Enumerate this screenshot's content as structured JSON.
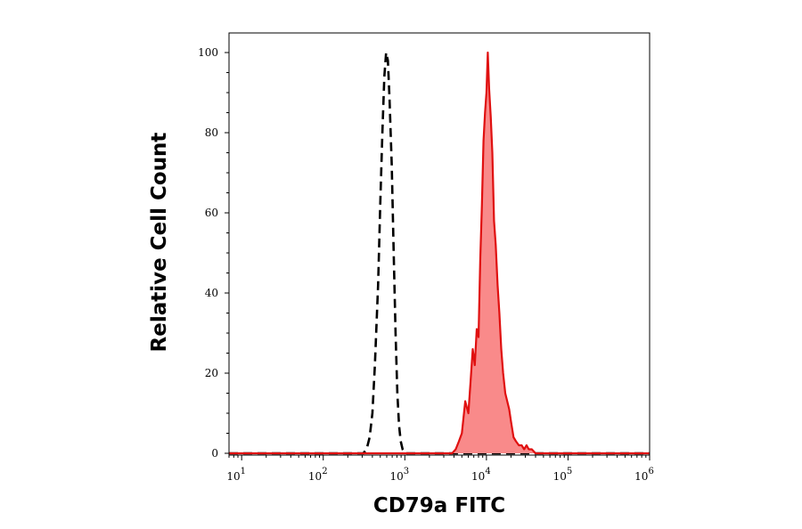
{
  "chart_data": {
    "type": "area",
    "xlabel": "CD79a FITC",
    "ylabel": "Relative Cell Count",
    "x_scale": "log",
    "xlim": [
      7,
      1000000
    ],
    "ylim": [
      0,
      105
    ],
    "x_ticks": [
      {
        "value": 10,
        "base": "10",
        "exp": "1"
      },
      {
        "value": 100,
        "base": "10",
        "exp": "2"
      },
      {
        "value": 1000,
        "base": "10",
        "exp": "3"
      },
      {
        "value": 10000,
        "base": "10",
        "exp": "4"
      },
      {
        "value": 100000,
        "base": "10",
        "exp": "5"
      },
      {
        "value": 1000000,
        "base": "10",
        "exp": "6"
      }
    ],
    "y_ticks": [
      0,
      20,
      40,
      60,
      80,
      100
    ],
    "grid": false,
    "legend": "none",
    "series": [
      {
        "style": "dashed",
        "color": "#000000",
        "fill": "none",
        "x": [
          7,
          310,
          340,
          370,
          400,
          430,
          470,
          500,
          530,
          560,
          590,
          620,
          650,
          690,
          730,
          770,
          810,
          850,
          890,
          940,
          1000,
          1100,
          1000000
        ],
        "y": [
          0,
          0,
          1,
          4,
          10,
          22,
          42,
          62,
          80,
          94,
          100,
          98,
          88,
          72,
          50,
          30,
          15,
          7,
          3,
          1,
          0,
          0,
          0
        ]
      },
      {
        "style": "solid",
        "color": "#e01010",
        "fill": "#f98a8a",
        "x": [
          7,
          3800,
          4200,
          4600,
          5000,
          5500,
          6000,
          6400,
          6800,
          7200,
          7600,
          8000,
          8400,
          8800,
          9200,
          9600,
          10000,
          10400,
          10800,
          11300,
          11800,
          12400,
          13000,
          13700,
          14400,
          15200,
          16000,
          17000,
          18000,
          19000,
          20000,
          21500,
          23000,
          25000,
          27000,
          29000,
          31000,
          33000,
          36000,
          40000,
          1000000
        ],
        "y": [
          0,
          0,
          1,
          3,
          5,
          13,
          10,
          18,
          26,
          22,
          31,
          29,
          48,
          62,
          78,
          85,
          90,
          100,
          91,
          84,
          75,
          58,
          52,
          42,
          35,
          26,
          20,
          15,
          13,
          11,
          8,
          4,
          3,
          2,
          2,
          1,
          2,
          1,
          1,
          0,
          0
        ]
      }
    ]
  }
}
